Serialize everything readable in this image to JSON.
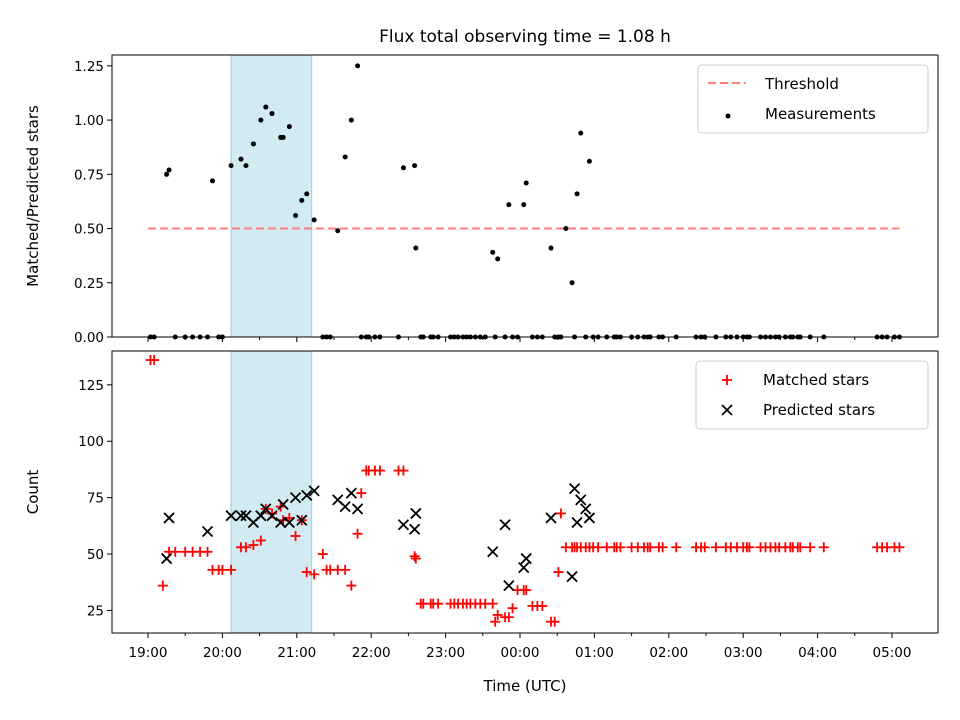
{
  "chart_data": [
    {
      "type": "scatter",
      "title": "Flux total observing time = 1.08 h",
      "xlabel": "",
      "ylabel": "Matched/Predicted stars",
      "ylim": [
        0,
        1.3
      ],
      "yticks": [
        "0.00",
        "0.25",
        "0.50",
        "0.75",
        "1.00",
        "1.25"
      ],
      "legend_position": "top-right",
      "highlight_span": [
        "20:07",
        "21:12"
      ],
      "threshold": {
        "name": "Threshold",
        "value": 0.5,
        "x_range": [
          "19:00",
          "05:06"
        ],
        "color": "#ff7f7f",
        "style": "dashed"
      },
      "series": [
        {
          "name": "Measurements",
          "color": "#000000",
          "marker": "dot",
          "x": [
            "19:02",
            "19:05",
            "19:15",
            "19:17",
            "19:22",
            "19:30",
            "19:36",
            "19:42",
            "19:48",
            "19:52",
            "19:57",
            "20:00",
            "20:07",
            "20:15",
            "20:19",
            "20:25",
            "20:31",
            "20:35",
            "20:40",
            "20:47",
            "20:49",
            "20:54",
            "20:59",
            "21:04",
            "21:08",
            "21:14",
            "21:21",
            "21:24",
            "21:27",
            "21:33",
            "21:39",
            "21:44",
            "21:49",
            "21:52",
            "21:56",
            "21:58",
            "22:03",
            "22:07",
            "22:22",
            "22:26",
            "22:35",
            "22:36",
            "22:40",
            "22:42",
            "22:48",
            "22:50",
            "22:54",
            "23:04",
            "23:07",
            "23:10",
            "23:14",
            "23:17",
            "23:20",
            "23:24",
            "23:28",
            "23:32",
            "23:38",
            "23:40",
            "23:42",
            "23:48",
            "23:51",
            "23:54",
            "23:58",
            "00:03",
            "00:05",
            "00:10",
            "00:14",
            "00:18",
            "00:25",
            "00:28",
            "00:31",
            "00:33",
            "00:37",
            "00:42",
            "00:44",
            "00:46",
            "00:49",
            "00:53",
            "00:56",
            "00:59",
            "01:03",
            "01:10",
            "01:16",
            "01:18",
            "01:21",
            "01:30",
            "01:35",
            "01:40",
            "01:43",
            "01:45",
            "01:52",
            "01:55",
            "02:06",
            "02:22",
            "02:26",
            "02:29",
            "02:38",
            "02:46",
            "02:50",
            "02:55",
            "03:00",
            "03:03",
            "03:05",
            "03:14",
            "03:18",
            "03:22",
            "03:26",
            "03:29",
            "03:34",
            "03:38",
            "03:40",
            "03:44",
            "03:46",
            "03:54",
            "04:05",
            "04:48",
            "04:52",
            "04:56",
            "05:02",
            "05:06"
          ],
          "y": [
            0,
            0,
            0.75,
            0.77,
            0,
            0,
            0,
            0,
            0,
            0.72,
            0,
            0,
            0.79,
            0.82,
            0.79,
            0.89,
            1.0,
            1.06,
            1.03,
            0.92,
            0.92,
            0.97,
            0.56,
            0.63,
            0.66,
            0.54,
            0,
            0,
            0,
            0.49,
            0.83,
            1.0,
            1.25,
            0,
            0,
            0,
            0,
            0,
            0,
            0.78,
            0.79,
            0.41,
            0,
            0,
            0,
            0,
            0,
            0,
            0,
            0,
            0,
            0,
            0,
            0,
            0,
            0,
            0.39,
            0,
            0.36,
            0,
            0.61,
            0,
            0,
            0.61,
            0.71,
            0,
            0,
            0,
            0.41,
            0,
            0,
            0,
            0.5,
            0.25,
            0,
            0.66,
            0.94,
            0,
            0.81,
            0,
            0,
            0,
            0,
            0,
            0,
            0,
            0,
            0,
            0,
            0,
            0,
            0,
            0,
            0,
            0,
            0,
            0,
            0,
            0,
            0,
            0,
            0,
            0,
            0,
            0,
            0,
            0,
            0,
            0,
            0,
            0,
            0,
            0,
            0,
            0,
            0,
            0,
            0,
            0,
            0
          ]
        }
      ]
    },
    {
      "type": "scatter",
      "title": "",
      "xlabel": "Time (UTC)",
      "ylabel": "Count",
      "ylim": [
        15,
        140
      ],
      "yticks": [
        "25",
        "50",
        "75",
        "100",
        "125"
      ],
      "xticks": [
        "19:00",
        "20:00",
        "21:00",
        "22:00",
        "23:00",
        "00:00",
        "01:00",
        "02:00",
        "03:00",
        "04:00",
        "05:00"
      ],
      "legend_position": "top-right",
      "highlight_span": [
        "20:07",
        "21:12"
      ],
      "series": [
        {
          "name": "Matched stars",
          "color": "#ff0000",
          "marker": "plus",
          "x": [
            "19:02",
            "19:05",
            "19:12",
            "19:17",
            "19:22",
            "19:30",
            "19:36",
            "19:42",
            "19:48",
            "19:52",
            "19:57",
            "20:00",
            "20:07",
            "20:15",
            "20:19",
            "20:25",
            "20:31",
            "20:35",
            "20:40",
            "20:47",
            "20:49",
            "20:54",
            "20:59",
            "21:04",
            "21:08",
            "21:14",
            "21:21",
            "21:24",
            "21:27",
            "21:33",
            "21:39",
            "21:44",
            "21:49",
            "21:52",
            "21:56",
            "21:58",
            "22:03",
            "22:07",
            "22:22",
            "22:26",
            "22:35",
            "22:36",
            "22:40",
            "22:42",
            "22:48",
            "22:50",
            "22:54",
            "23:04",
            "23:07",
            "23:10",
            "23:14",
            "23:17",
            "23:20",
            "23:24",
            "23:28",
            "23:32",
            "23:38",
            "23:40",
            "23:42",
            "23:48",
            "23:51",
            "23:54",
            "23:58",
            "00:03",
            "00:05",
            "00:10",
            "00:14",
            "00:18",
            "00:25",
            "00:28",
            "00:31",
            "00:33",
            "00:37",
            "00:42",
            "00:44",
            "00:46",
            "00:49",
            "00:53",
            "00:56",
            "00:59",
            "01:03",
            "01:10",
            "01:16",
            "01:18",
            "01:21",
            "01:30",
            "01:35",
            "01:40",
            "01:43",
            "01:45",
            "01:52",
            "01:55",
            "02:06",
            "02:22",
            "02:26",
            "02:29",
            "02:38",
            "02:46",
            "02:50",
            "02:55",
            "03:00",
            "03:03",
            "03:05",
            "03:14",
            "03:18",
            "03:22",
            "03:26",
            "03:29",
            "03:34",
            "03:38",
            "03:40",
            "03:44",
            "03:46",
            "03:54",
            "04:05",
            "04:48",
            "04:52",
            "04:56",
            "05:02",
            "05:06"
          ],
          "y": [
            136,
            136,
            36,
            51,
            51,
            51,
            51,
            51,
            51,
            43,
            43,
            43,
            43,
            53,
            53,
            54,
            56,
            70,
            68,
            71,
            65,
            66,
            58,
            65,
            42,
            41,
            50,
            43,
            43,
            43,
            43,
            36,
            59,
            77,
            87,
            87,
            87,
            87,
            87,
            87,
            49,
            48,
            28,
            28,
            28,
            28,
            28,
            28,
            28,
            28,
            28,
            28,
            28,
            28,
            28,
            28,
            28,
            20,
            23,
            22,
            22,
            26,
            34,
            34,
            34,
            27,
            27,
            27,
            20,
            20,
            42,
            68,
            53,
            53,
            53,
            53,
            53,
            53,
            53,
            53,
            53,
            53,
            53,
            53,
            53,
            53,
            53,
            53,
            53,
            53,
            53,
            53,
            53,
            53,
            53,
            53,
            53,
            53,
            53,
            53,
            53,
            53,
            53,
            53,
            53,
            53,
            53,
            53,
            53,
            53,
            53,
            53,
            53,
            53,
            53,
            53,
            53,
            53,
            53,
            53
          ]
        },
        {
          "name": "Predicted stars",
          "color": "#000000",
          "marker": "x",
          "x": [
            "19:15",
            "19:17",
            "19:48",
            "20:07",
            "20:15",
            "20:19",
            "20:25",
            "20:31",
            "20:35",
            "20:40",
            "20:47",
            "20:49",
            "20:54",
            "20:59",
            "21:04",
            "21:08",
            "21:14",
            "21:33",
            "21:39",
            "21:44",
            "21:49",
            "22:26",
            "22:35",
            "22:36",
            "23:38",
            "23:48",
            "23:51",
            "00:03",
            "00:05",
            "00:25",
            "00:42",
            "00:44",
            "00:46",
            "00:49",
            "00:53",
            "00:56"
          ],
          "y": [
            48,
            66,
            60,
            67,
            67,
            67,
            64,
            67,
            70,
            67,
            64,
            72,
            64,
            75,
            65,
            76,
            78,
            74,
            71,
            77,
            70,
            63,
            61,
            68,
            51,
            63,
            36,
            44,
            48,
            66,
            40,
            79,
            64,
            74,
            70,
            66
          ]
        }
      ]
    }
  ]
}
